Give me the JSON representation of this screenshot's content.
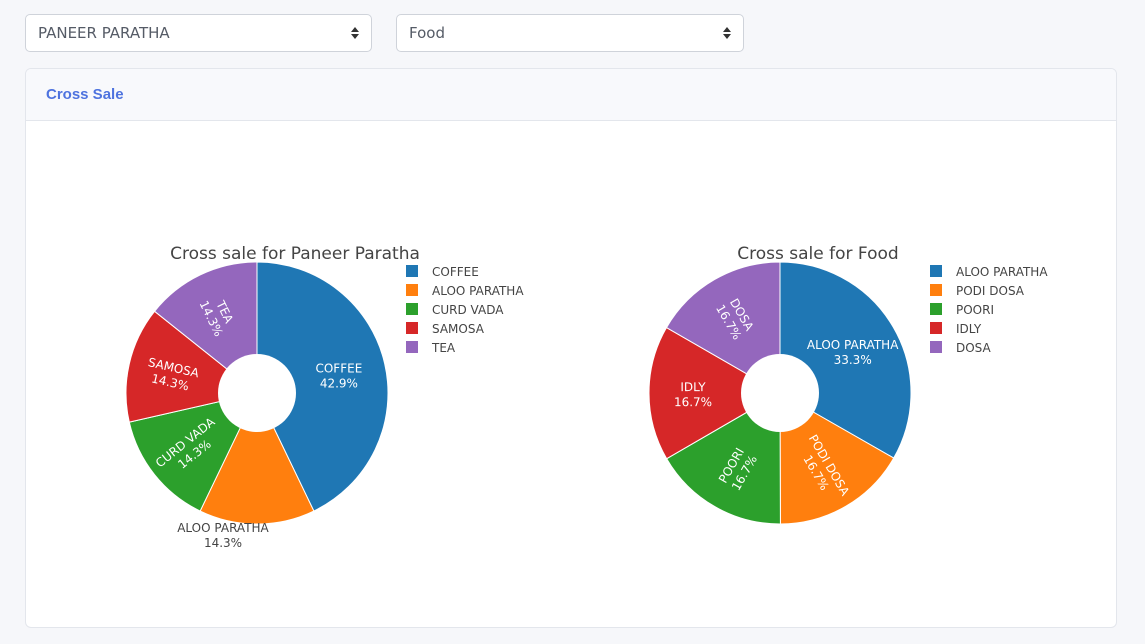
{
  "filters": {
    "item_select": {
      "selected": "PANEER PARATHA"
    },
    "category_select": {
      "selected": "Food"
    }
  },
  "card": {
    "title": "Cross Sale"
  },
  "chart_data": [
    {
      "type": "pie",
      "hole": true,
      "title": "Cross sale for Paneer Paratha",
      "legend_position": "right",
      "slices": [
        {
          "label": "COFFEE",
          "value": 42.9,
          "color": "#1f77b4"
        },
        {
          "label": "ALOO PARATHA",
          "value": 14.3,
          "color": "#ff7f0e"
        },
        {
          "label": "CURD VADA",
          "value": 14.3,
          "color": "#2ca02c"
        },
        {
          "label": "SAMOSA",
          "value": 14.3,
          "color": "#d62728"
        },
        {
          "label": "TEA",
          "value": 14.3,
          "color": "#9467bd"
        }
      ]
    },
    {
      "type": "pie",
      "hole": true,
      "title": "Cross sale for Food",
      "legend_position": "right",
      "slices": [
        {
          "label": "ALOO PARATHA",
          "value": 33.3,
          "color": "#1f77b4"
        },
        {
          "label": "PODI DOSA",
          "value": 16.7,
          "color": "#ff7f0e"
        },
        {
          "label": "POORI",
          "value": 16.7,
          "color": "#2ca02c"
        },
        {
          "label": "IDLY",
          "value": 16.7,
          "color": "#d62728"
        },
        {
          "label": "DOSA",
          "value": 16.7,
          "color": "#9467bd"
        }
      ]
    }
  ]
}
